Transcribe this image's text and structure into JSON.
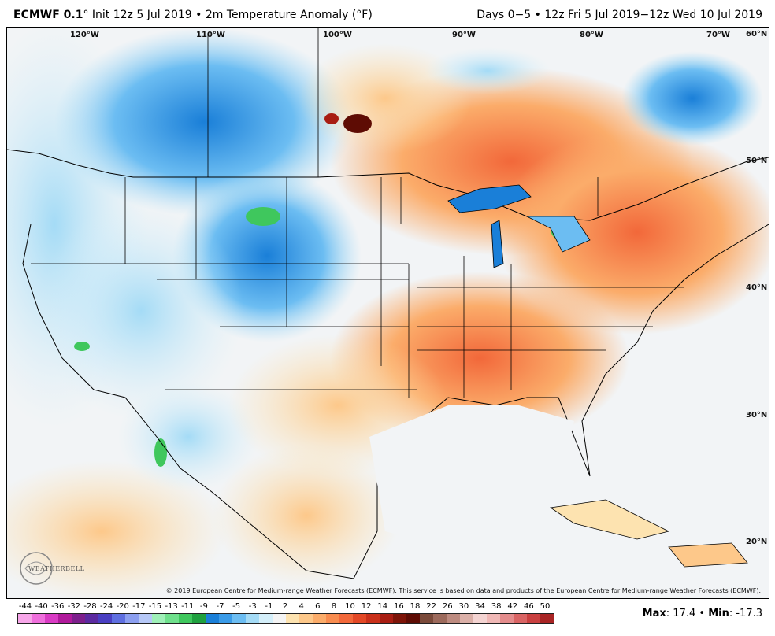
{
  "header": {
    "model": "ECMWF 0.1",
    "degree_symbol": "°",
    "init_text": " Init 12z 5 Jul 2019 • 2m Temperature Anomaly (°F)",
    "range_text": "Days 0−5 • 12z Fri 5 Jul 2019−12z Wed 10 Jul 2019"
  },
  "map": {
    "longitude_labels": [
      "120°W",
      "110°W",
      "100°W",
      "90°W",
      "80°W",
      "70°W"
    ],
    "latitude_labels": [
      "60°N",
      "50°N",
      "40°N",
      "30°N",
      "20°N"
    ],
    "credit": "© 2019 European Centre for Medium-range Weather Forecasts (ECMWF). This service is based on data and products of the European Centre for Medium-range Weather Forecasts (ECMWF).",
    "logo_text": "WEATHERBELL"
  },
  "legend": {
    "labels": [
      "-44",
      "-40",
      "-36",
      "-32",
      "-28",
      "-24",
      "-20",
      "-17",
      "-15",
      "-13",
      "-11",
      "-9",
      "-7",
      "-5",
      "-3",
      "-1",
      "2",
      "4",
      "6",
      "8",
      "10",
      "12",
      "14",
      "16",
      "18",
      "22",
      "26",
      "30",
      "34",
      "38",
      "42",
      "46",
      "50"
    ],
    "colors": [
      "#f7a6e9",
      "#ef6fdc",
      "#d93bc4",
      "#b01a9b",
      "#7d1f8c",
      "#5c2aa0",
      "#4a3fc2",
      "#5f6fe0",
      "#8c9ff0",
      "#b6c8f7",
      "#9ff0b8",
      "#6fe08c",
      "#3fc75d",
      "#1fa03f",
      "#1a7fd8",
      "#3a9be8",
      "#6cbdf2",
      "#a4dbf6",
      "#d4effa",
      "#f4f4f4",
      "#fde3b0",
      "#fdc88a",
      "#fbac6a",
      "#f88c4f",
      "#f2683a",
      "#e34826",
      "#c9301a",
      "#a81d12",
      "#7d1408",
      "#5e0c04",
      "#7a4a3a",
      "#9c6a5c",
      "#bd8b80",
      "#dbb0a8",
      "#f4d4d2",
      "#f0b8b6",
      "#e48c8c",
      "#d96464",
      "#c94040",
      "#a82424"
    ],
    "max_label": "Max",
    "max_value": ": 17.4",
    "separator": " • ",
    "min_label": "Min",
    "min_value": ": -17.3"
  }
}
